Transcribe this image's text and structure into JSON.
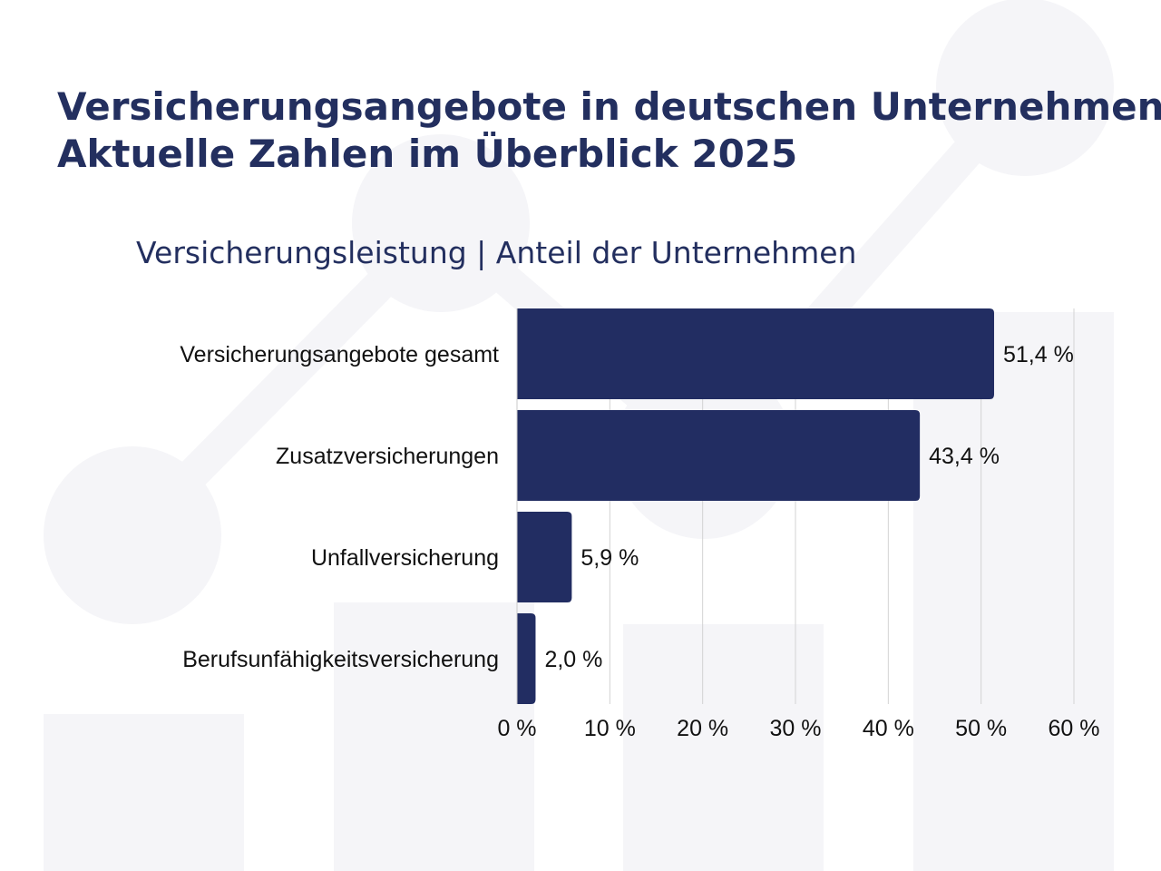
{
  "title_line1": "Versicherungsangebote in deutschen Unternehmen-",
  "title_line2": "Aktuelle Zahlen im Überblick 2025",
  "chart_data": {
    "type": "bar",
    "orientation": "horizontal",
    "title": "Versicherungsleistung | Anteil der Unternehmen",
    "categories": [
      "Versicherungsangebote gesamt",
      "Zusatzversicherungen",
      "Unfallversicherung",
      "Berufsunfähigkeitsversicherung"
    ],
    "values": [
      51.4,
      43.4,
      5.9,
      2.0
    ],
    "value_labels": [
      "51,4 %",
      "43,4 %",
      "5,9 %",
      "2,0 %"
    ],
    "xlim": [
      0,
      60
    ],
    "x_ticks": [
      0,
      10,
      20,
      30,
      40,
      50,
      60
    ],
    "x_tick_labels": [
      "0 %",
      "10 %",
      "20 %",
      "30 %",
      "40 %",
      "50 %",
      "60 %"
    ],
    "grid": "vertical",
    "bar_color": "#222d62"
  }
}
